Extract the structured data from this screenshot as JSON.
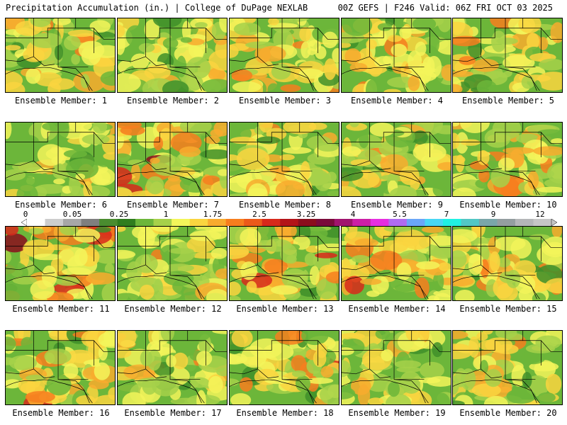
{
  "header": {
    "left": "Precipitation Accumulation (in.) | College of DuPage NEXLAB",
    "right": "00Z GEFS | F246 Valid: 06Z FRI OCT 03 2025"
  },
  "legend": {
    "ticks": [
      "0",
      "0.05",
      "0.25",
      "1",
      "1.75",
      "2.5",
      "3.25",
      "4",
      "5.5",
      "7",
      "9",
      "12"
    ],
    "colors": [
      "#ffffff",
      "#cdcdcd",
      "#a7a7a7",
      "#7f7f7f",
      "#4a8c2f",
      "#2f7d1e",
      "#6cb63a",
      "#a6d14a",
      "#f3f55a",
      "#fad53f",
      "#f8ab2e",
      "#f77e1e",
      "#ec5a1a",
      "#d8291b",
      "#b31318",
      "#8b0e1d",
      "#7a0b3a",
      "#a0146e",
      "#cc1fa6",
      "#e62ee0",
      "#b06bf0",
      "#6aa6f7",
      "#48d7f4",
      "#20f1e3",
      "#52c7c5",
      "#7aa6a9",
      "#949ea0",
      "#b4b6b8",
      "#c6c6c6"
    ]
  },
  "panel_label_prefix": "Ensemble Member:",
  "members": [
    {
      "label": "Ensemble Member: 1",
      "wetness": 0.55
    },
    {
      "label": "Ensemble Member: 2",
      "wetness": 0.35
    },
    {
      "label": "Ensemble Member: 3",
      "wetness": 0.42
    },
    {
      "label": "Ensemble Member: 4",
      "wetness": 0.5
    },
    {
      "label": "Ensemble Member: 5",
      "wetness": 0.48
    },
    {
      "label": "Ensemble Member: 6",
      "wetness": 0.4
    },
    {
      "label": "Ensemble Member: 7",
      "wetness": 0.72
    },
    {
      "label": "Ensemble Member: 8",
      "wetness": 0.5
    },
    {
      "label": "Ensemble Member: 9",
      "wetness": 0.45
    },
    {
      "label": "Ensemble Member: 10",
      "wetness": 0.62
    },
    {
      "label": "Ensemble Member: 11",
      "wetness": 0.85
    },
    {
      "label": "Ensemble Member: 12",
      "wetness": 0.45
    },
    {
      "label": "Ensemble Member: 13",
      "wetness": 0.7
    },
    {
      "label": "Ensemble Member: 14",
      "wetness": 0.65
    },
    {
      "label": "Ensemble Member: 15",
      "wetness": 0.5
    },
    {
      "label": "Ensemble Member: 16",
      "wetness": 0.68
    },
    {
      "label": "Ensemble Member: 17",
      "wetness": 0.48
    },
    {
      "label": "Ensemble Member: 18",
      "wetness": 0.62
    },
    {
      "label": "Ensemble Member: 19",
      "wetness": 0.35
    },
    {
      "label": "Ensemble Member: 20",
      "wetness": 0.45
    }
  ]
}
